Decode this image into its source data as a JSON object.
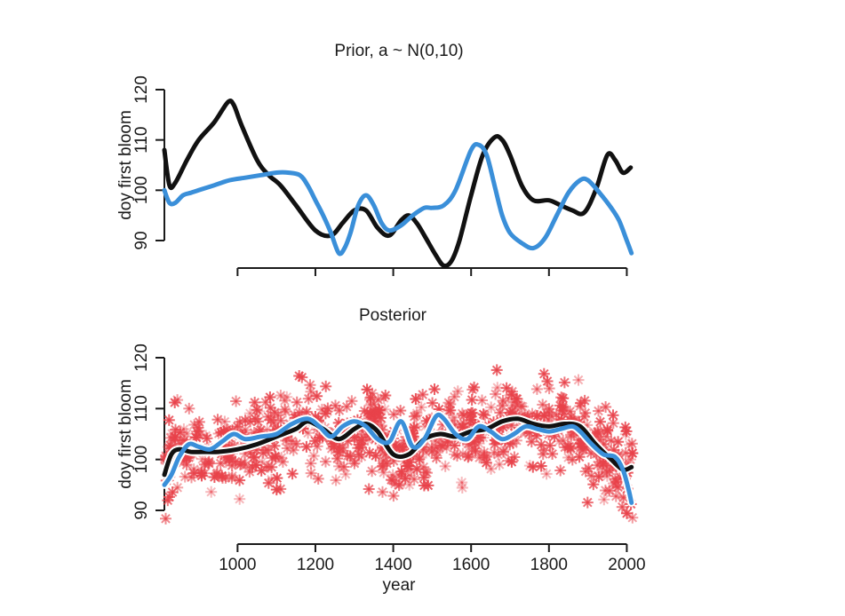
{
  "chart_data": [
    {
      "type": "line",
      "title": "Prior, a ~ N(0,10)",
      "xlabel": "",
      "ylabel": "doy first bloom",
      "xlim": [
        812,
        2015
      ],
      "ylim": [
        90,
        120
      ],
      "yticks": [
        90,
        100,
        110,
        120
      ],
      "xticks": [
        1000,
        1200,
        1400,
        1600,
        1800,
        2000
      ],
      "xtick_labels_shown": false,
      "colors": {
        "black": "#111111",
        "blue": "#3a8fd9"
      },
      "series": [
        {
          "color": "black",
          "x": [
            812,
            825,
            840,
            870,
            900,
            940,
            975,
            990,
            1010,
            1050,
            1080,
            1110,
            1150,
            1200,
            1240,
            1270,
            1300,
            1330,
            1360,
            1390,
            1420,
            1440,
            1460,
            1480,
            1510,
            1530,
            1550,
            1570,
            1600,
            1630,
            1660,
            1680,
            1700,
            1730,
            1760,
            1800,
            1830,
            1860,
            1890,
            1920,
            1950,
            1970,
            1990,
            2010
          ],
          "y": [
            108,
            101,
            101.5,
            106,
            110,
            113.5,
            117.5,
            117,
            113,
            106,
            103,
            101,
            97,
            92,
            91,
            93.5,
            96,
            96,
            92.5,
            91,
            94,
            95,
            93.5,
            91,
            87,
            85,
            86,
            90,
            99,
            107,
            110.5,
            110,
            107,
            101,
            98,
            98,
            97,
            96,
            95.5,
            100,
            107,
            106,
            103.5,
            104.5
          ]
        },
        {
          "color": "blue",
          "x": [
            812,
            825,
            840,
            860,
            880,
            900,
            940,
            980,
            1020,
            1060,
            1100,
            1130,
            1160,
            1180,
            1200,
            1220,
            1240,
            1260,
            1275,
            1290,
            1310,
            1330,
            1350,
            1370,
            1390,
            1420,
            1450,
            1480,
            1500,
            1530,
            1560,
            1600,
            1620,
            1640,
            1660,
            1680,
            1700,
            1730,
            1760,
            1790,
            1820,
            1850,
            1880,
            1900,
            1930,
            1960,
            1980,
            2000,
            2012
          ],
          "y": [
            100,
            97.5,
            97.5,
            99,
            99.5,
            100,
            101,
            102,
            102.5,
            103,
            103.5,
            103.5,
            103,
            101,
            98,
            95,
            91.5,
            87.5,
            88.5,
            91.5,
            97,
            99,
            97,
            93.5,
            92,
            93,
            95,
            96.5,
            96.5,
            97,
            100,
            108,
            109,
            107,
            101,
            95,
            91.5,
            89.5,
            88.5,
            90.5,
            95,
            99.5,
            102,
            102,
            99.5,
            96.5,
            94,
            90,
            87.5
          ]
        }
      ]
    },
    {
      "type": "scatter",
      "title": "Posterior",
      "xlabel": "year",
      "ylabel": "doy first bloom",
      "xlim": [
        812,
        2015
      ],
      "ylim": [
        86,
        124
      ],
      "yticks": [
        90,
        100,
        110,
        120
      ],
      "xticks": [
        1000,
        1200,
        1400,
        1600,
        1800,
        2000
      ],
      "marker": "asterisk",
      "colors": {
        "points": "#e8424a",
        "black": "#111111",
        "blue": "#3a8fd9"
      },
      "series": [
        {
          "color": "black",
          "x": [
            812,
            830,
            850,
            880,
            910,
            950,
            1000,
            1050,
            1100,
            1150,
            1180,
            1220,
            1260,
            1300,
            1330,
            1360,
            1400,
            1440,
            1480,
            1520,
            1560,
            1600,
            1640,
            1680,
            1720,
            1760,
            1800,
            1840,
            1880,
            1920,
            1960,
            1990,
            2012
          ],
          "y": [
            97,
            101,
            102,
            101.5,
            101.5,
            101.5,
            102,
            103,
            104.5,
            106,
            107.5,
            106,
            104,
            106,
            107,
            105.5,
            101,
            101,
            104,
            105,
            104.5,
            105.5,
            106,
            107.5,
            108,
            107,
            106.5,
            107,
            106.5,
            103,
            100,
            98,
            98.5
          ]
        },
        {
          "color": "blue",
          "x": [
            812,
            830,
            850,
            875,
            900,
            930,
            960,
            990,
            1020,
            1060,
            1100,
            1140,
            1180,
            1210,
            1240,
            1270,
            1300,
            1330,
            1360,
            1390,
            1420,
            1450,
            1480,
            1510,
            1530,
            1560,
            1590,
            1620,
            1650,
            1680,
            1710,
            1740,
            1770,
            1800,
            1830,
            1860,
            1880,
            1910,
            1940,
            1970,
            1990,
            2005,
            2012
          ],
          "y": [
            95,
            97,
            100.5,
            103,
            102.5,
            102,
            103.5,
            105,
            104,
            104.5,
            105,
            107,
            108,
            106.5,
            104.5,
            106.5,
            107.5,
            106.5,
            104,
            103.5,
            107.5,
            102.5,
            104,
            108.5,
            108,
            105,
            104,
            106.5,
            105.5,
            104,
            105,
            106.5,
            106,
            105.5,
            106,
            106.5,
            105.5,
            103,
            101,
            100.5,
            98,
            94,
            91.5
          ]
        }
      ]
    }
  ]
}
